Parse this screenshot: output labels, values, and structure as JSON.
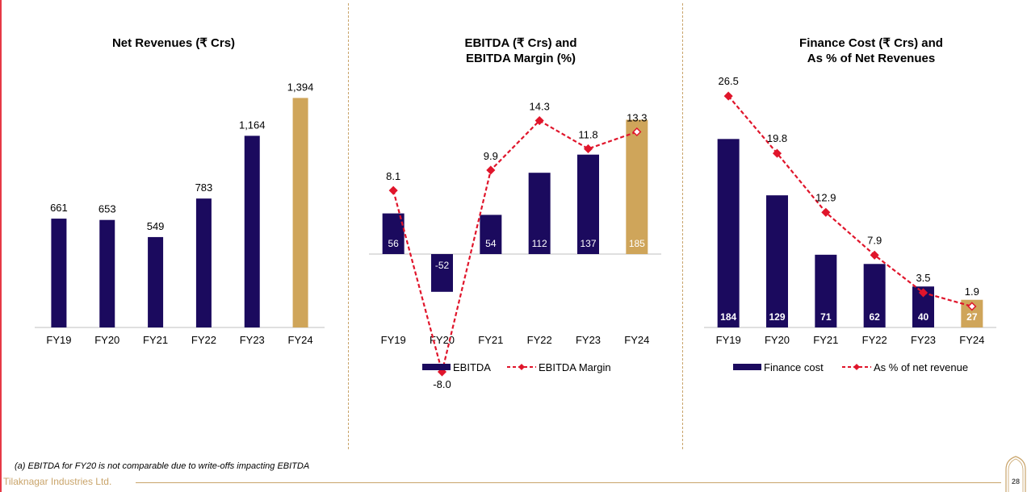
{
  "colors": {
    "navy": "#1b0a5e",
    "gold": "#cfa55a",
    "red": "#e0152b",
    "gold_line": "#c9a46a",
    "axis": "#bfbfbf"
  },
  "chart_data": [
    {
      "type": "bar",
      "title": "Net Revenues (₹ Crs)",
      "categories": [
        "FY19",
        "FY20",
        "FY21",
        "FY22",
        "FY23",
        "FY24"
      ],
      "values": [
        661,
        653,
        549,
        783,
        1164,
        1394
      ],
      "value_labels": [
        "661",
        "653",
        "549",
        "783",
        "1,164",
        "1,394"
      ],
      "highlight_last": true,
      "ylim": [
        0,
        1450
      ]
    },
    {
      "type": "bar+line",
      "title_lines": [
        "EBITDA (₹ Crs) and",
        "EBITDA Margin (%)"
      ],
      "categories": [
        "FY19",
        "FY20",
        "FY21",
        "FY22",
        "FY23",
        "FY24"
      ],
      "series": [
        {
          "name": "EBITDA",
          "type": "bar",
          "values": [
            56,
            -52,
            54,
            112,
            137,
            185
          ],
          "labels": [
            "56",
            "-52",
            "54",
            "112",
            "137",
            "185"
          ]
        },
        {
          "name": "EBITDA Margin",
          "type": "line",
          "values": [
            8.1,
            -8.0,
            9.9,
            14.3,
            11.8,
            13.3
          ],
          "labels": [
            "8.1",
            "-8.0",
            "9.9",
            "14.3",
            "11.8",
            "13.3"
          ]
        }
      ],
      "legend": [
        "EBITDA",
        "EBITDA Margin"
      ]
    },
    {
      "type": "bar+line",
      "title_lines": [
        "Finance Cost (₹ Crs) and",
        "As % of Net Revenues"
      ],
      "categories": [
        "FY19",
        "FY20",
        "FY21",
        "FY22",
        "FY23",
        "FY24"
      ],
      "series": [
        {
          "name": "Finance cost",
          "type": "bar",
          "values": [
            184,
            129,
            71,
            62,
            40,
            27
          ],
          "labels": [
            "184",
            "129",
            "71",
            "62",
            "40",
            "27"
          ]
        },
        {
          "name": "As % of net revenue",
          "type": "line",
          "values": [
            26.5,
            19.8,
            12.9,
            7.9,
            3.5,
            1.9
          ],
          "labels": [
            "26.5",
            "19.8",
            "12.9",
            "7.9",
            "3.5",
            "1.9"
          ]
        }
      ],
      "legend": [
        "Finance cost",
        "As % of net revenue"
      ]
    }
  ],
  "footnote": "(a)  EBITDA for FY20 is not comparable due to write-offs impacting EBITDA",
  "company": "Tilaknagar Industries Ltd.",
  "page_number": "28"
}
